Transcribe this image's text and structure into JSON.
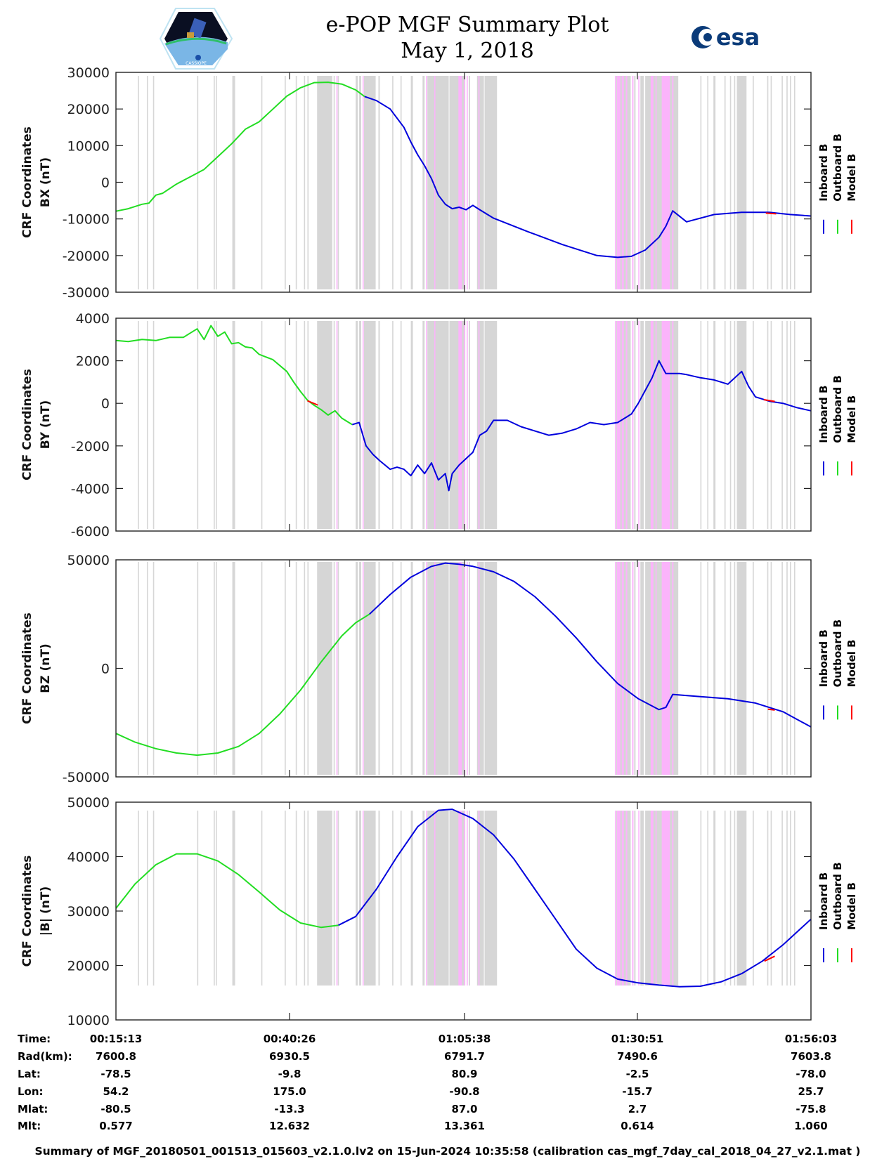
{
  "header": {
    "title_line1": "e-POP MGF Summary Plot",
    "title_line2": "May 1, 2018",
    "left_logo": "cassiope-mission-logo",
    "left_logo_text": "CASSIOPE",
    "right_logo": "esa-logo",
    "right_logo_text": "esa"
  },
  "legend": {
    "items": [
      {
        "label": "Inboard B",
        "color": "#0000dd"
      },
      {
        "label": "Outboard B",
        "color": "#00dd00"
      },
      {
        "label": "Model B",
        "color": "#ff0000"
      }
    ]
  },
  "colors": {
    "gray_band": "#d6d6d6",
    "pink_band": "#fbb4fb",
    "inboard": "#0000dd",
    "outboard": "#22dd22",
    "model": "#ff0000"
  },
  "chart_data": [
    {
      "type": "line",
      "name": "bx",
      "ylabel_line1": "CRF Coordinates",
      "ylabel_line2": "BX (nT)",
      "ylim": [
        -30000,
        30000
      ],
      "yticks": [
        -30000,
        -20000,
        -10000,
        0,
        10000,
        20000,
        30000
      ],
      "xlim_minutes": [
        15.22,
        116.05
      ],
      "series": [
        {
          "name": "Outboard B",
          "color": "#22dd22",
          "x": [
            15.22,
            17,
            19,
            20,
            21,
            22,
            24,
            26,
            28,
            30,
            32,
            34,
            36,
            38,
            40,
            42,
            44,
            46,
            48,
            50,
            51.3
          ],
          "y": [
            -7900,
            -7200,
            -6000,
            -5700,
            -3500,
            -3000,
            -500,
            1500,
            3500,
            7000,
            10500,
            14500,
            16500,
            20000,
            23500,
            25800,
            27200,
            27300,
            26800,
            25200,
            23400
          ]
        },
        {
          "name": "Inboard B",
          "color": "#0000dd",
          "x": [
            51.3,
            53,
            55,
            57,
            58,
            59,
            60,
            61,
            62,
            63,
            64,
            65,
            66,
            67,
            68,
            70,
            75,
            80,
            85,
            88,
            90,
            92,
            94,
            95,
            96,
            98,
            102,
            106,
            110,
            113,
            116.05
          ],
          "y": [
            23400,
            22300,
            20000,
            15000,
            11000,
            7500,
            4500,
            1000,
            -3500,
            -6000,
            -7200,
            -6800,
            -7500,
            -6300,
            -7500,
            -9800,
            -13500,
            -17000,
            -20000,
            -20500,
            -20200,
            -18500,
            -15000,
            -12000,
            -7800,
            -10800,
            -8800,
            -8200,
            -8200,
            -8800,
            -9200
          ]
        },
        {
          "name": "Model B",
          "color": "#ff0000",
          "x": [
            109.5,
            111
          ],
          "y": [
            -8400,
            -8600
          ]
        }
      ]
    },
    {
      "type": "line",
      "name": "by",
      "ylabel_line1": "CRF Coordinates",
      "ylabel_line2": "BY (nT)",
      "ylim": [
        -6000,
        4000
      ],
      "yticks": [
        -6000,
        -4000,
        -2000,
        0,
        2000,
        4000
      ],
      "xlim_minutes": [
        15.22,
        116.05
      ],
      "series": [
        {
          "name": "Outboard B",
          "color": "#22dd22",
          "x": [
            15.22,
            17,
            19,
            21,
            23,
            25,
            26,
            27,
            28,
            29,
            30,
            31,
            32,
            33,
            34,
            35,
            36,
            38,
            40,
            41,
            42,
            43,
            44,
            45,
            46,
            47,
            48,
            49.5
          ],
          "y": [
            2950,
            2900,
            3000,
            2950,
            3100,
            3100,
            3300,
            3500,
            3000,
            3650,
            3150,
            3350,
            2800,
            2850,
            2650,
            2600,
            2300,
            2050,
            1500,
            1000,
            550,
            150,
            -100,
            -300,
            -550,
            -350,
            -700,
            -1000
          ]
        },
        {
          "name": "Inboard B",
          "color": "#0000dd",
          "x": [
            49.5,
            50.5,
            51.5,
            52.5,
            53.5,
            55,
            56,
            57,
            58,
            59,
            60,
            61,
            62,
            63,
            63.5,
            64,
            65,
            66,
            67,
            68,
            69,
            70,
            72,
            74,
            76,
            78,
            80,
            82,
            84,
            86,
            88,
            90,
            91,
            92,
            93,
            94,
            95,
            96,
            97,
            98,
            100,
            102,
            104,
            106,
            107,
            108,
            109,
            110,
            112,
            114,
            116.05
          ],
          "y": [
            -1000,
            -900,
            -2000,
            -2400,
            -2700,
            -3100,
            -3000,
            -3100,
            -3400,
            -2900,
            -3300,
            -2800,
            -3600,
            -3300,
            -4100,
            -3300,
            -2900,
            -2600,
            -2300,
            -1500,
            -1300,
            -800,
            -800,
            -1100,
            -1300,
            -1500,
            -1400,
            -1200,
            -900,
            -1000,
            -900,
            -500,
            0,
            600,
            1200,
            2000,
            1400,
            1400,
            1400,
            1350,
            1200,
            1100,
            900,
            1500,
            800,
            300,
            200,
            100,
            0,
            -200,
            -350
          ]
        },
        {
          "name": "Model B",
          "color": "#ff0000",
          "x": [
            43,
            44.5,
            109.2,
            110.8
          ],
          "y": [
            120,
            -80,
            170,
            90
          ]
        }
      ]
    },
    {
      "type": "line",
      "name": "bz",
      "ylabel_line1": "CRF Coordinates",
      "ylabel_line2": "BZ (nT)",
      "ylim": [
        -50000,
        50000
      ],
      "yticks": [
        -50000,
        0,
        50000
      ],
      "xlim_minutes": [
        15.22,
        116.05
      ],
      "series": [
        {
          "name": "Outboard B",
          "color": "#22dd22",
          "x": [
            15.22,
            18,
            21,
            24,
            27,
            30,
            33,
            36,
            39,
            42,
            45,
            48,
            50,
            52
          ],
          "y": [
            -30000,
            -34000,
            -37000,
            -39000,
            -40000,
            -39000,
            -36000,
            -30000,
            -21000,
            -10000,
            3000,
            15000,
            21000,
            25000
          ]
        },
        {
          "name": "Inboard B",
          "color": "#0000dd",
          "x": [
            52,
            55,
            58,
            61,
            63,
            65,
            67,
            70,
            73,
            76,
            79,
            82,
            85,
            88,
            91,
            94,
            95,
            96,
            100,
            104,
            108,
            112,
            116.05
          ],
          "y": [
            25000,
            34000,
            42000,
            47000,
            48500,
            48000,
            47000,
            44500,
            40000,
            33000,
            24000,
            14000,
            3000,
            -7000,
            -14000,
            -19000,
            -18000,
            -12000,
            -13000,
            -14000,
            -16000,
            -20000,
            -27000
          ]
        },
        {
          "name": "Model B",
          "color": "#ff0000",
          "x": [
            109.8,
            110.8
          ],
          "y": [
            -18800,
            -19200
          ]
        }
      ]
    },
    {
      "type": "line",
      "name": "bmag",
      "ylabel_line1": "CRF Coordinates",
      "ylabel_line2": "|B| (nT)",
      "ylim": [
        10000,
        50000
      ],
      "yticks": [
        10000,
        20000,
        30000,
        40000,
        50000
      ],
      "xlim_minutes": [
        15.22,
        116.05
      ],
      "series": [
        {
          "name": "Outboard B",
          "color": "#22dd22",
          "x": [
            15.22,
            18,
            21,
            24,
            27,
            30,
            33,
            36,
            39,
            42,
            45,
            47.5
          ],
          "y": [
            30500,
            35000,
            38500,
            40500,
            40500,
            39200,
            36700,
            33500,
            30200,
            27800,
            27000,
            27400
          ]
        },
        {
          "name": "Inboard B",
          "color": "#0000dd",
          "x": [
            47.5,
            50,
            53,
            56,
            59,
            62,
            64,
            67,
            70,
            73,
            76,
            79,
            82,
            85,
            88,
            91,
            94,
            97,
            100,
            103,
            106,
            109,
            112,
            116.05
          ],
          "y": [
            27400,
            29000,
            34000,
            40000,
            45500,
            48500,
            48700,
            47000,
            44000,
            39500,
            34000,
            28500,
            23000,
            19500,
            17500,
            16800,
            16400,
            16100,
            16200,
            17000,
            18500,
            20800,
            23800,
            28500
          ]
        },
        {
          "name": "Model B",
          "color": "#ff0000",
          "x": [
            109.3,
            110.8
          ],
          "y": [
            20800,
            21700
          ]
        }
      ]
    }
  ],
  "bands_minutes": {
    "gray": [
      [
        18.4,
        18.5
      ],
      [
        19.7,
        19.8
      ],
      [
        20.6,
        20.7
      ],
      [
        27.0,
        27.1
      ],
      [
        29.4,
        29.5
      ],
      [
        29.7,
        29.8
      ],
      [
        32.1,
        32.5
      ],
      [
        36.3,
        36.4
      ],
      [
        39.7,
        39.8
      ],
      [
        41.3,
        41.4
      ],
      [
        42.5,
        42.6
      ],
      [
        43.0,
        43.1
      ],
      [
        44.4,
        45.2
      ],
      [
        44.7,
        46.6
      ],
      [
        46.8,
        46.9
      ],
      [
        47.4,
        47.5
      ],
      [
        50.0,
        50.3
      ],
      [
        50.5,
        50.8
      ],
      [
        51.2,
        52.9
      ],
      [
        53.3,
        53.5
      ],
      [
        55.3,
        55.4
      ],
      [
        56.5,
        56.6
      ],
      [
        58.0,
        58.3
      ],
      [
        59.7,
        60.0
      ],
      [
        60.4,
        63.5
      ],
      [
        63.6,
        65.9
      ],
      [
        66.4,
        66.6
      ],
      [
        67.6,
        68.6
      ],
      [
        68.7,
        70.5
      ],
      [
        87.8,
        89.9
      ],
      [
        90.4,
        90.6
      ],
      [
        91.3,
        91.8
      ],
      [
        92.0,
        94.6
      ],
      [
        95.4,
        96.8
      ],
      [
        100.0,
        100.1
      ],
      [
        101.0,
        101.1
      ],
      [
        101.9,
        102.2
      ],
      [
        103.5,
        103.6
      ],
      [
        104.3,
        104.4
      ],
      [
        104.9,
        105.0
      ],
      [
        105.3,
        106.7
      ],
      [
        107.6,
        107.7
      ],
      [
        109.7,
        109.8
      ],
      [
        110.2,
        110.3
      ],
      [
        111.8,
        111.9
      ],
      [
        112.5,
        112.6
      ],
      [
        113.0,
        113.1
      ],
      [
        113.6,
        113.7
      ]
    ],
    "pink": [
      [
        47.2,
        47.3
      ],
      [
        51.0,
        51.1
      ],
      [
        60.2,
        60.3
      ],
      [
        61.4,
        61.5
      ],
      [
        64.9,
        65.4
      ],
      [
        65.7,
        65.8
      ],
      [
        66.1,
        66.2
      ],
      [
        67.8,
        67.9
      ],
      [
        87.6,
        87.7
      ],
      [
        87.9,
        88.4
      ],
      [
        88.6,
        88.9
      ],
      [
        89.2,
        89.4
      ],
      [
        90.1,
        90.3
      ],
      [
        91.0,
        91.1
      ],
      [
        92.8,
        93.2
      ],
      [
        93.5,
        93.6
      ],
      [
        94.4,
        95.6
      ],
      [
        95.9,
        96.1
      ]
    ]
  },
  "table": {
    "row_labels": [
      "Time:",
      "Rad(km):",
      "Lat:",
      "Lon:",
      "Mlat:",
      "Mlt:"
    ],
    "columns": [
      {
        "time": "00:15:13",
        "rad": "7600.8",
        "lat": "-78.5",
        "lon": "54.2",
        "mlat": "-80.5",
        "mlt": "0.577"
      },
      {
        "time": "00:40:26",
        "rad": "6930.5",
        "lat": "-9.8",
        "lon": "175.0",
        "mlat": "-13.3",
        "mlt": "12.632"
      },
      {
        "time": "01:05:38",
        "rad": "6791.7",
        "lat": "80.9",
        "lon": "-90.8",
        "mlat": "87.0",
        "mlt": "13.361"
      },
      {
        "time": "01:30:51",
        "rad": "7490.6",
        "lat": "-2.5",
        "lon": "-15.7",
        "mlat": "2.7",
        "mlt": "0.614"
      },
      {
        "time": "01:56:03",
        "rad": "7603.8",
        "lat": "-78.0",
        "lon": "25.7",
        "mlat": "-75.8",
        "mlt": "1.060"
      }
    ]
  },
  "footer": {
    "text": "Summary of MGF_20180501_001513_015603_v2.1.0.lv2 on 15-Jun-2024 10:35:58 (calibration cas_mgf_7day_cal_2018_04_27_v2.1.mat )"
  }
}
